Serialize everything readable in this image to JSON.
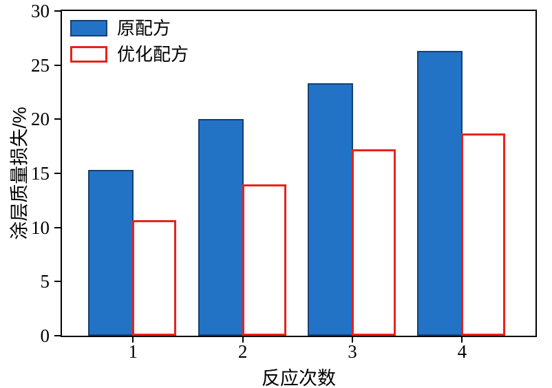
{
  "chart_data": {
    "type": "bar",
    "categories": [
      "1",
      "2",
      "3",
      "4"
    ],
    "series": [
      {
        "name": "原配方",
        "values": [
          15.3,
          20.0,
          23.3,
          26.3
        ],
        "fill": "#2272c6",
        "edge": "#163f73",
        "swatch_style": "filled"
      },
      {
        "name": "优化配方",
        "values": [
          10.7,
          14.0,
          17.2,
          18.7
        ],
        "fill": "#ffffff",
        "edge": "#e8221a",
        "swatch_style": "outlined"
      }
    ],
    "title": "",
    "xlabel": "反应次数",
    "ylabel": "涂层质量损失/%",
    "ylim": [
      0,
      30
    ],
    "yticks": [
      0,
      5,
      10,
      15,
      20,
      25,
      30
    ],
    "grid": false,
    "legend_position": "top-left",
    "colors": {
      "axis": "#000000",
      "background": "#ffffff"
    }
  }
}
